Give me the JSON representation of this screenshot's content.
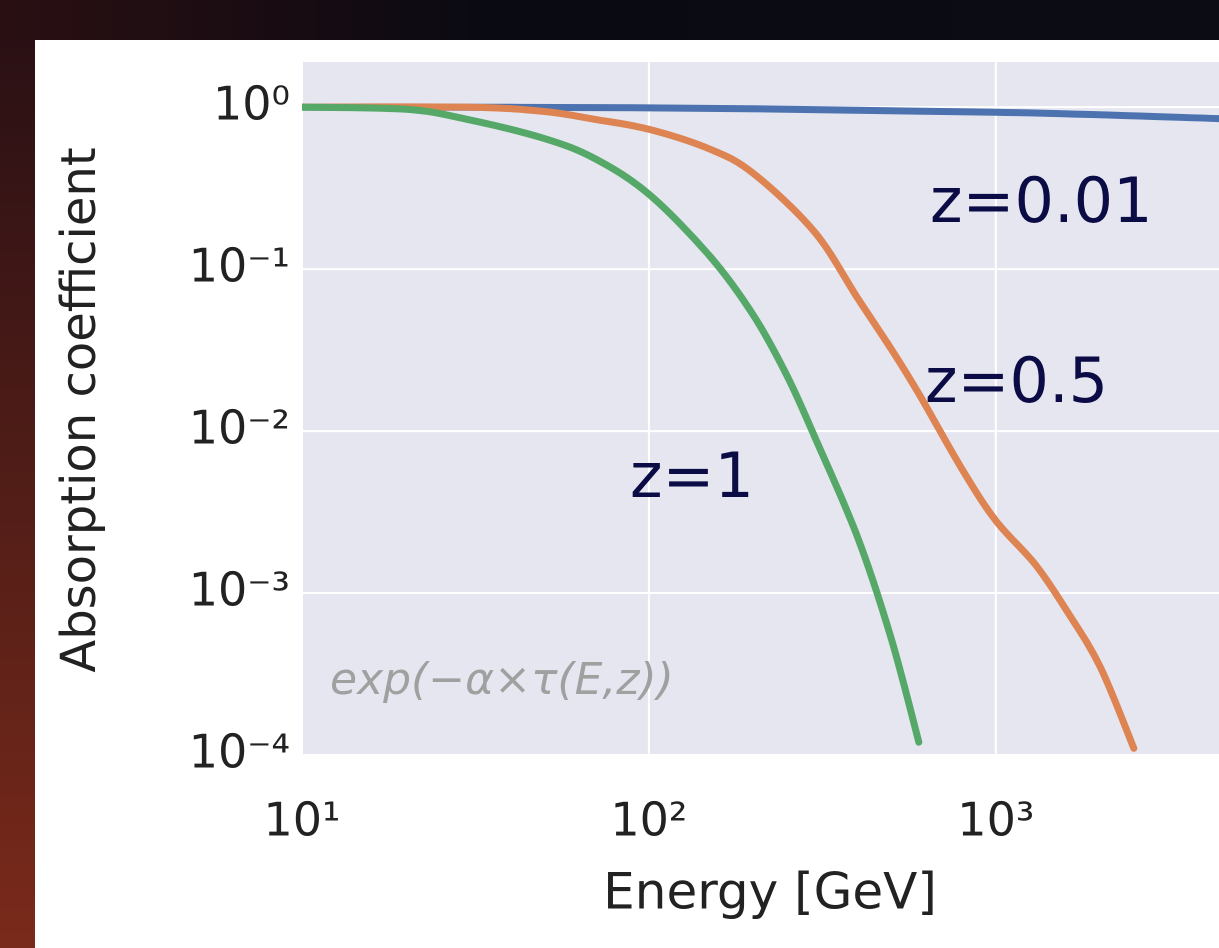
{
  "chart_data": {
    "type": "line",
    "xlabel": "Energy [GeV]",
    "ylabel": "Absorption coefficient",
    "annotation": "exp(−α×τ(E,z))",
    "xscale": "log",
    "yscale": "log",
    "grid": true,
    "xlim": [
      10,
      4400
    ],
    "ylim": [
      0.0001,
      1.9
    ],
    "xticks": [
      {
        "value": 10,
        "label": "10¹"
      },
      {
        "value": 100,
        "label": "10²"
      },
      {
        "value": 1000,
        "label": "10³"
      }
    ],
    "yticks": [
      {
        "value": 1,
        "label": "10⁰"
      },
      {
        "value": 0.1,
        "label": "10⁻¹"
      },
      {
        "value": 0.01,
        "label": "10⁻²"
      },
      {
        "value": 0.001,
        "label": "10⁻³"
      },
      {
        "value": 0.0001,
        "label": "10⁻⁴"
      }
    ],
    "series": [
      {
        "name": "z=0.01",
        "color": "#4c72b0",
        "x": [
          10,
          100,
          1000,
          4400
        ],
        "values": [
          1,
          0.99,
          0.93,
          0.85
        ]
      },
      {
        "name": "z=0.5",
        "color": "#dd8452",
        "x": [
          10,
          30,
          50,
          70,
          100,
          150,
          200,
          300,
          400,
          500,
          600,
          800,
          1000,
          1300,
          1600,
          2000,
          2500
        ],
        "values": [
          1,
          1,
          0.94,
          0.84,
          0.73,
          0.55,
          0.39,
          0.17,
          0.066,
          0.032,
          0.017,
          0.0058,
          0.0028,
          0.0015,
          0.00078,
          0.00035,
          0.00011
        ]
      },
      {
        "name": "z=1",
        "color": "#55a868",
        "x": [
          10,
          20,
          30,
          50,
          70,
          100,
          150,
          200,
          250,
          300,
          400,
          500,
          600
        ],
        "values": [
          1,
          0.97,
          0.84,
          0.64,
          0.48,
          0.29,
          0.12,
          0.052,
          0.022,
          0.0093,
          0.0022,
          0.00052,
          0.00012
        ]
      }
    ]
  }
}
